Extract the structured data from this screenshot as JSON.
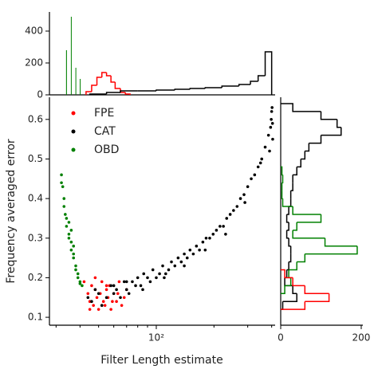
{
  "chart_data": [
    {
      "type": "scatter",
      "xlabel": "Filter Length estimate",
      "ylabel": "Frequency averaged error",
      "xscale": "log",
      "xlim": [
        27.7,
        417
      ],
      "xticks": [
        {
          "value": 100,
          "label": "10²"
        }
      ],
      "xminorticks": [
        30,
        40,
        50,
        60,
        70,
        80,
        90,
        200,
        300,
        400
      ],
      "ylim": [
        0.08,
        0.656
      ],
      "yticks": [
        0.1,
        0.2,
        0.3,
        0.4,
        0.5,
        0.6
      ],
      "legend": "upper left",
      "series": [
        {
          "name": "FPE",
          "color": "#ff0000",
          "x": [
            42,
            44,
            45,
            46,
            47,
            48,
            49,
            50,
            51,
            52,
            53,
            54,
            55,
            56,
            57,
            58,
            60,
            62,
            64,
            66,
            68,
            70,
            45,
            48,
            52,
            55,
            59,
            63
          ],
          "values": [
            0.19,
            0.16,
            0.14,
            0.18,
            0.13,
            0.17,
            0.15,
            0.12,
            0.16,
            0.19,
            0.14,
            0.13,
            0.17,
            0.15,
            0.18,
            0.12,
            0.16,
            0.14,
            0.19,
            0.13,
            0.15,
            0.17,
            0.12,
            0.2,
            0.13,
            0.18,
            0.14,
            0.16
          ]
        },
        {
          "name": "CAT",
          "color": "#000000",
          "x": [
            44,
            46,
            48,
            50,
            52,
            55,
            58,
            60,
            62,
            65,
            68,
            70,
            72,
            75,
            78,
            80,
            83,
            86,
            90,
            93,
            96,
            100,
            104,
            108,
            112,
            116,
            120,
            125,
            130,
            135,
            140,
            145,
            150,
            156,
            162,
            168,
            175,
            182,
            190,
            198,
            206,
            215,
            224,
            233,
            243,
            253,
            264,
            275,
            287,
            300,
            313,
            326,
            340,
            355,
            370,
            385,
            395,
            398,
            400,
            402,
            404,
            405,
            60,
            70,
            85,
            110,
            140,
            180,
            230,
            290,
            350,
            390
          ],
          "values": [
            0.15,
            0.14,
            0.17,
            0.16,
            0.13,
            0.15,
            0.18,
            0.16,
            0.17,
            0.15,
            0.19,
            0.17,
            0.16,
            0.19,
            0.18,
            0.2,
            0.18,
            0.21,
            0.2,
            0.19,
            0.22,
            0.2,
            0.21,
            0.23,
            0.21,
            0.22,
            0.24,
            0.23,
            0.25,
            0.24,
            0.26,
            0.25,
            0.27,
            0.26,
            0.28,
            0.27,
            0.29,
            0.3,
            0.3,
            0.31,
            0.32,
            0.33,
            0.33,
            0.35,
            0.36,
            0.37,
            0.38,
            0.4,
            0.41,
            0.43,
            0.45,
            0.46,
            0.48,
            0.5,
            0.53,
            0.56,
            0.58,
            0.6,
            0.62,
            0.63,
            0.59,
            0.55,
            0.18,
            0.19,
            0.17,
            0.2,
            0.23,
            0.27,
            0.31,
            0.39,
            0.49,
            0.52
          ]
        },
        {
          "name": "OBD",
          "color": "#008000",
          "x": [
            32,
            32,
            32.5,
            33,
            33,
            33.5,
            34,
            34,
            35,
            35,
            36,
            36,
            37,
            37,
            38,
            38,
            39,
            39,
            40,
            40,
            41,
            35,
            36,
            37
          ],
          "values": [
            0.46,
            0.44,
            0.43,
            0.4,
            0.38,
            0.36,
            0.35,
            0.33,
            0.31,
            0.3,
            0.29,
            0.27,
            0.26,
            0.25,
            0.23,
            0.22,
            0.21,
            0.2,
            0.19,
            0.185,
            0.18,
            0.34,
            0.32,
            0.28
          ]
        }
      ]
    },
    {
      "type": "histogram",
      "orientation": "vertical",
      "xscale": "log",
      "xlim": [
        27.7,
        417
      ],
      "ylim": [
        0,
        520
      ],
      "yticks": [
        0,
        200,
        400
      ],
      "series": [
        {
          "color": "#008000",
          "histtype": "bar",
          "bins": [
            33.5,
            34.5,
            35.5,
            36.5,
            37.5,
            38.5,
            39.5,
            40.5
          ],
          "values": [
            280,
            0,
            490,
            0,
            170,
            0,
            100
          ]
        },
        {
          "color": "#ff0000",
          "histtype": "step",
          "bins": [
            43,
            46,
            49,
            52,
            55,
            58,
            61,
            65,
            69,
            73
          ],
          "values": [
            20,
            60,
            110,
            140,
            120,
            80,
            40,
            15,
            5
          ]
        },
        {
          "color": "#000000",
          "histtype": "step",
          "bins": [
            45,
            55,
            65,
            80,
            100,
            125,
            150,
            180,
            220,
            270,
            310,
            340,
            370,
            400
          ],
          "values": [
            5,
            15,
            25,
            25,
            30,
            35,
            40,
            45,
            55,
            65,
            85,
            120,
            270
          ]
        }
      ]
    },
    {
      "type": "histogram",
      "orientation": "horizontal",
      "ylim": [
        0.08,
        0.656
      ],
      "xlim": [
        0,
        204
      ],
      "xticks": [
        0,
        200
      ],
      "series": [
        {
          "color": "#000000",
          "histtype": "step",
          "bins": [
            0.12,
            0.14,
            0.16,
            0.18,
            0.2,
            0.22,
            0.24,
            0.26,
            0.28,
            0.3,
            0.32,
            0.34,
            0.36,
            0.38,
            0.4,
            0.42,
            0.44,
            0.46,
            0.48,
            0.5,
            0.52,
            0.54,
            0.56,
            0.58,
            0.6,
            0.62,
            0.64
          ],
          "values": [
            5,
            40,
            30,
            10,
            15,
            20,
            25,
            25,
            20,
            15,
            20,
            15,
            20,
            25,
            25,
            30,
            30,
            40,
            50,
            60,
            70,
            100,
            150,
            140,
            100,
            30
          ]
        },
        {
          "color": "#008000",
          "histtype": "step",
          "bins": [
            0.16,
            0.18,
            0.2,
            0.22,
            0.24,
            0.26,
            0.28,
            0.3,
            0.32,
            0.34,
            0.36,
            0.38,
            0.4,
            0.42,
            0.44,
            0.46,
            0.48
          ],
          "values": [
            10,
            25,
            20,
            40,
            60,
            190,
            110,
            30,
            40,
            100,
            30,
            5,
            3,
            3,
            5,
            3
          ]
        },
        {
          "color": "#ff0000",
          "histtype": "step",
          "bins": [
            0.12,
            0.14,
            0.16,
            0.18,
            0.2,
            0.22
          ],
          "values": [
            60,
            120,
            60,
            30,
            10
          ]
        }
      ]
    }
  ]
}
